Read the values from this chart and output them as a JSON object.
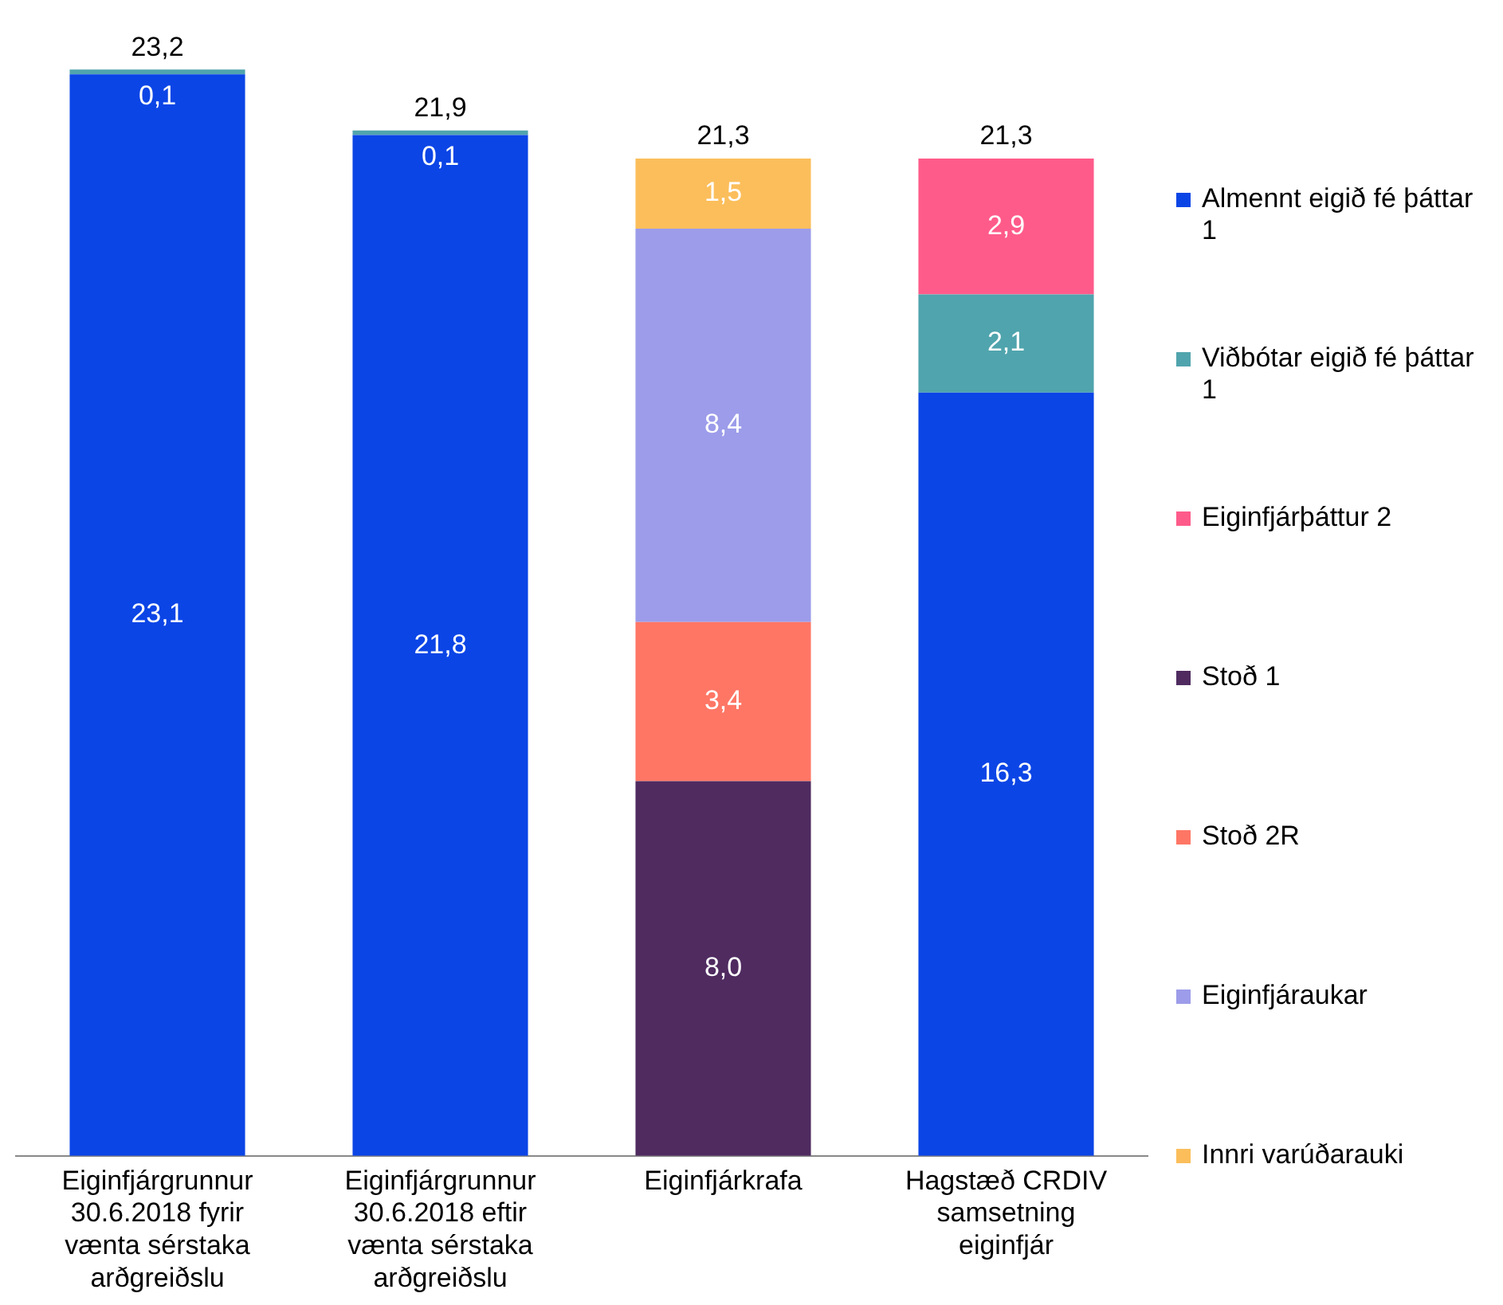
{
  "chart_data": {
    "type": "bar",
    "stacked": true,
    "legend": "right",
    "categories": [
      "Eiginfjárgrunnur 30.6.2018 fyrir vænta sérstaka arðgreiðslu",
      "Eiginfjárgrunnur 30.6.2018 eftir vænta sérstaka arðgreiðslu",
      "Eiginfjárkrafa",
      "Hagstæð CRDIV samsetning eiginfjár"
    ],
    "series": [
      {
        "name": "Almennt eigið fé þáttar 1",
        "color": "#0b45e6",
        "values": [
          23.1,
          21.8,
          null,
          16.3
        ],
        "value_labels": [
          "23,1",
          "21,8",
          null,
          "16,3"
        ]
      },
      {
        "name": "Viðbótar eigið fé þáttar 1",
        "color": "#50a4ad",
        "values": [
          0.1,
          0.1,
          null,
          2.1
        ],
        "value_labels": [
          "0,1",
          "0,1",
          null,
          "2,1"
        ]
      },
      {
        "name": "Eiginfjárþáttur 2",
        "color": "#ff5b8a",
        "values": [
          null,
          null,
          null,
          2.9
        ],
        "value_labels": [
          null,
          null,
          null,
          "2,9"
        ]
      },
      {
        "name": "Stoð 1",
        "color": "#4f2b60",
        "values": [
          null,
          null,
          8.0,
          null
        ],
        "value_labels": [
          null,
          null,
          "8,0",
          null
        ]
      },
      {
        "name": "Stoð 2R",
        "color": "#ff7665",
        "values": [
          null,
          null,
          3.4,
          null
        ],
        "value_labels": [
          null,
          null,
          "3,4",
          null
        ]
      },
      {
        "name": "Eiginfjáraukar",
        "color": "#9c9cea",
        "values": [
          null,
          null,
          8.4,
          null
        ],
        "value_labels": [
          null,
          null,
          "8,4",
          null
        ]
      },
      {
        "name": "Innri varúðarauki",
        "color": "#fbbe5b",
        "values": [
          null,
          null,
          1.5,
          null
        ],
        "value_labels": [
          null,
          null,
          "1,5",
          null
        ]
      }
    ],
    "totals": [
      "23,2",
      "21,9",
      "21,3",
      "21,3"
    ]
  }
}
